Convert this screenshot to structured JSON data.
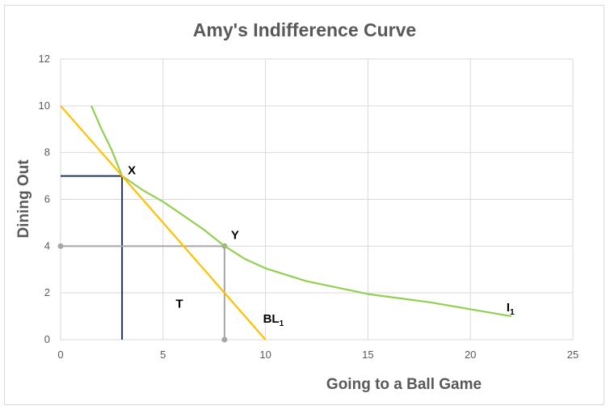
{
  "chart_data": {
    "type": "line",
    "title": "Amy's Indifference Curve",
    "xlabel": "Going to a Ball Game",
    "ylabel": "Dining Out",
    "xlim": [
      0,
      25
    ],
    "ylim": [
      0,
      12
    ],
    "xticks": [
      0,
      5,
      10,
      15,
      20,
      25
    ],
    "yticks": [
      0,
      2,
      4,
      6,
      8,
      10,
      12
    ],
    "grid": true,
    "series": [
      {
        "label": "I",
        "label_sub": "1",
        "color": "#92d050",
        "points": [
          [
            1.5,
            10
          ],
          [
            2,
            9
          ],
          [
            2.5,
            8.1
          ],
          [
            3,
            7
          ],
          [
            4,
            6.4
          ],
          [
            5,
            5.9
          ],
          [
            6,
            5.3
          ],
          [
            7,
            4.7
          ],
          [
            8,
            4
          ],
          [
            9,
            3.45
          ],
          [
            10,
            3.05
          ],
          [
            12,
            2.5
          ],
          [
            15,
            1.95
          ],
          [
            18,
            1.6
          ],
          [
            22,
            1
          ]
        ]
      },
      {
        "label": "BL",
        "label_sub": "1",
        "color": "#ffc000",
        "points": [
          [
            0,
            10
          ],
          [
            10,
            0
          ]
        ]
      }
    ],
    "guides": [
      {
        "name": "X",
        "x": 3,
        "y": 7,
        "color": "#1f3864"
      },
      {
        "name": "Y",
        "x": 8,
        "y": 4,
        "color": "#a6a6a6"
      }
    ],
    "annotations": [
      {
        "text": "X",
        "x": 3,
        "y": 7
      },
      {
        "text": "Y",
        "x": 8,
        "y": 4
      },
      {
        "text": "T",
        "x": 5.5,
        "y": 1.5
      }
    ]
  }
}
